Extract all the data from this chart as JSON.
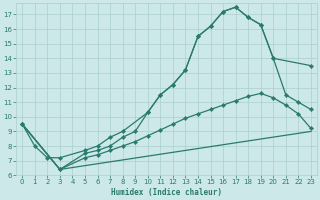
{
  "xlabel": "Humidex (Indice chaleur)",
  "background_color": "#cce8e8",
  "grid_color": "#aacfcf",
  "line_color": "#2a7a6e",
  "xlim": [
    -0.5,
    23.5
  ],
  "ylim": [
    6,
    17.8
  ],
  "xticks": [
    0,
    1,
    2,
    3,
    4,
    5,
    6,
    7,
    8,
    9,
    10,
    11,
    12,
    13,
    14,
    15,
    16,
    17,
    18,
    19,
    20,
    21,
    22,
    23
  ],
  "yticks": [
    6,
    7,
    8,
    9,
    10,
    11,
    12,
    13,
    14,
    15,
    16,
    17
  ],
  "line1_x": [
    0,
    1,
    2,
    3,
    5,
    6,
    7,
    8,
    10,
    11,
    12,
    13,
    14,
    15,
    16,
    17,
    18,
    19,
    20,
    23
  ],
  "line1_y": [
    9.5,
    8.0,
    7.2,
    7.2,
    7.7,
    8.0,
    8.6,
    9.0,
    10.3,
    11.5,
    12.2,
    13.2,
    15.5,
    16.2,
    17.2,
    17.5,
    16.8,
    16.3,
    14.0,
    13.5
  ],
  "line2_x": [
    0,
    3,
    5,
    6,
    7,
    8,
    9,
    10,
    11,
    12,
    13,
    14,
    15,
    16,
    17,
    18,
    19,
    20,
    21,
    22,
    23
  ],
  "line2_y": [
    9.5,
    6.4,
    7.5,
    7.7,
    8.0,
    8.6,
    9.0,
    10.3,
    11.5,
    12.2,
    13.2,
    15.5,
    16.2,
    17.2,
    17.5,
    16.8,
    16.3,
    14.0,
    11.5,
    11.0,
    10.5
  ],
  "line3_x": [
    0,
    3,
    5,
    6,
    7,
    8,
    9,
    10,
    11,
    12,
    13,
    14,
    15,
    16,
    17,
    18,
    19,
    20,
    21,
    22,
    23
  ],
  "line3_y": [
    9.5,
    6.4,
    7.2,
    7.4,
    7.7,
    8.0,
    8.3,
    8.7,
    9.1,
    9.5,
    9.9,
    10.2,
    10.5,
    10.8,
    11.1,
    11.4,
    11.6,
    11.3,
    10.8,
    10.2,
    9.2
  ],
  "line4_x": [
    0,
    3,
    23
  ],
  "line4_y": [
    9.5,
    6.4,
    9.0
  ]
}
